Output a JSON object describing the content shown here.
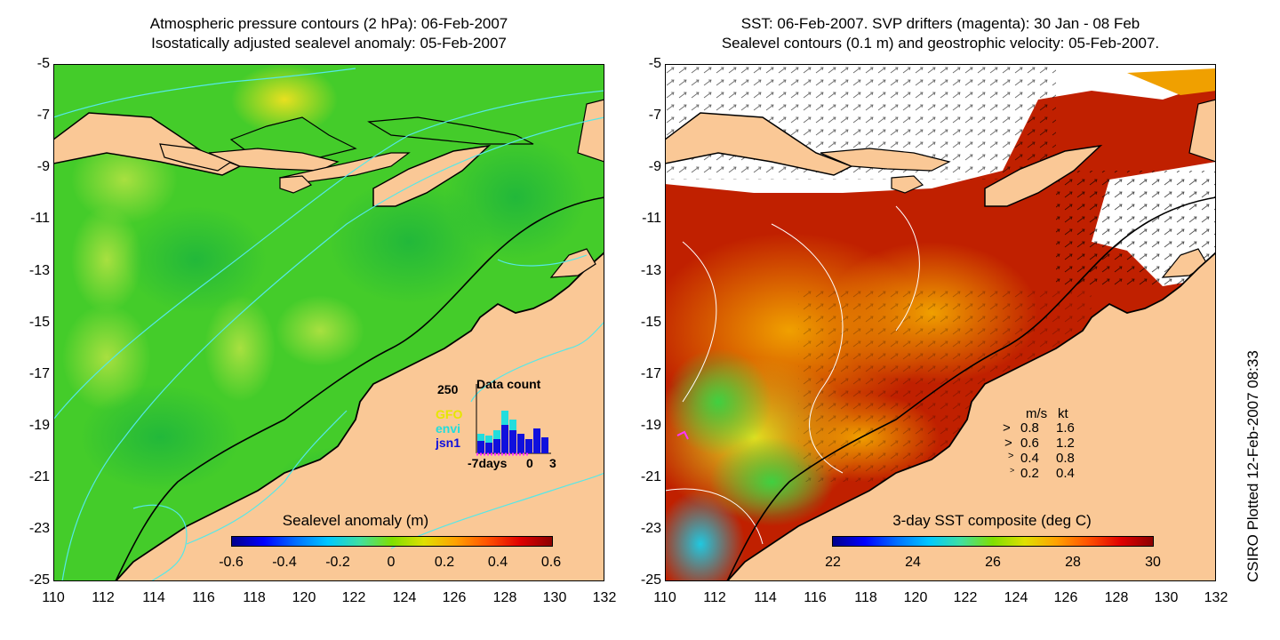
{
  "left_panel": {
    "title_line1": "Atmospheric pressure contours (2 hPa): 06-Feb-2007",
    "title_line2": "Isostatically adjusted sealevel anomaly: 05-Feb-2007",
    "colorbar_label": "Sealevel anomaly (m)",
    "colorbar_ticks": [
      "-0.6",
      "-0.4",
      "-0.2",
      "0",
      "0.2",
      "0.4",
      "0.6"
    ],
    "inset": {
      "count_max": "250",
      "title": "Data count",
      "sources": [
        {
          "name": "GFO",
          "color": "#e6e600"
        },
        {
          "name": "envi",
          "color": "#22dddd"
        },
        {
          "name": "jsn1",
          "color": "#1010dd"
        }
      ],
      "axis_start": "-7days",
      "axis_zero": "0",
      "axis_end": "3"
    }
  },
  "right_panel": {
    "title_line1": "SST: 06-Feb-2007. SVP drifters (magenta): 30 Jan - 08 Feb",
    "title_line2": "Sealevel contours (0.1 m) and geostrophic velocity: 05-Feb-2007.",
    "colorbar_label": "3-day SST composite (deg C)",
    "colorbar_ticks": [
      "22",
      "24",
      "26",
      "28",
      "30"
    ],
    "velocity_legend": {
      "header_ms": "m/s",
      "header_kt": "kt",
      "rows": [
        {
          "ms": "0.8",
          "kt": "1.6"
        },
        {
          "ms": "0.6",
          "kt": "1.2"
        },
        {
          "ms": "0.4",
          "kt": "0.8"
        },
        {
          "ms": "0.2",
          "kt": "0.4"
        }
      ]
    }
  },
  "axes": {
    "lat_ticks": [
      "-5",
      "-7",
      "-9",
      "-11",
      "-13",
      "-15",
      "-17",
      "-19",
      "-21",
      "-23",
      "-25"
    ],
    "lon_ticks": [
      "110",
      "112",
      "114",
      "116",
      "118",
      "120",
      "122",
      "124",
      "126",
      "128",
      "130",
      "132"
    ]
  },
  "credit": "CSIRO Plotted 12-Feb-2007 08:33",
  "colors": {
    "land": "#fac896",
    "ocean_anomaly": "#44cc2a",
    "sst_warm": "#b81800"
  }
}
